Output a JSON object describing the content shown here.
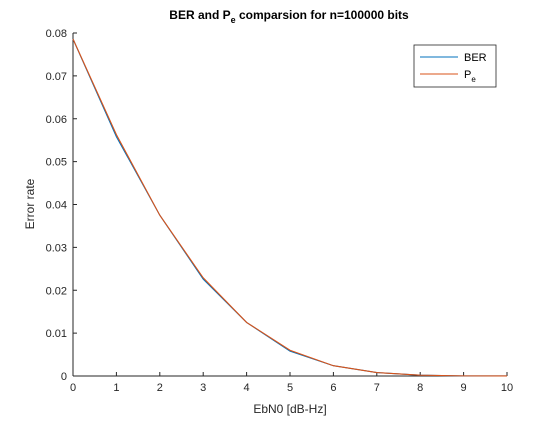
{
  "chart_data": {
    "type": "line",
    "title": {
      "prefix": "BER and P",
      "subscript": "e",
      "suffix": " comparsion for n=100000 bits"
    },
    "xlabel": "EbN0 [dB-Hz]",
    "ylabel": "Error rate",
    "xlim": [
      0,
      10
    ],
    "ylim": [
      0,
      0.08
    ],
    "xticks": [
      0,
      1,
      2,
      3,
      4,
      5,
      6,
      7,
      8,
      9,
      10
    ],
    "xtick_labels": [
      "0",
      "1",
      "2",
      "3",
      "4",
      "5",
      "6",
      "7",
      "8",
      "9",
      "10"
    ],
    "yticks": [
      0,
      0.01,
      0.02,
      0.03,
      0.04,
      0.05,
      0.06,
      0.07,
      0.08
    ],
    "ytick_labels": [
      "0",
      "0.01",
      "0.02",
      "0.03",
      "0.04",
      "0.05",
      "0.06",
      "0.07",
      "0.08"
    ],
    "grid": false,
    "legend_position": "top-right",
    "x": [
      0,
      1,
      2,
      3,
      4,
      5,
      6,
      7,
      8,
      9,
      10
    ],
    "series": [
      {
        "name": "BER",
        "color": "#0072BD",
        "values": [
          0.0786,
          0.0558,
          0.0375,
          0.0226,
          0.0125,
          0.0058,
          0.0024,
          0.0008,
          0.0002,
          3e-05,
          4e-06
        ]
      },
      {
        "name": "P",
        "name_subscript": "e",
        "color": "#D95319",
        "values": [
          0.0786,
          0.0563,
          0.0375,
          0.0229,
          0.0125,
          0.006,
          0.0024,
          0.0008,
          0.0002,
          3e-05,
          4e-06
        ]
      }
    ]
  }
}
